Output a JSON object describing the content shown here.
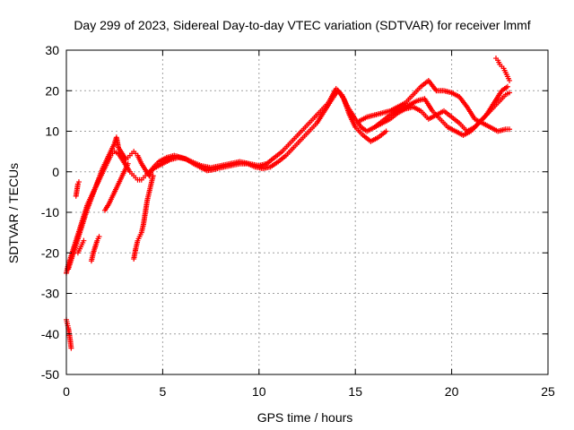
{
  "chart_data": {
    "type": "scatter",
    "title": "Day 299 of 2023, Sidereal Day-to-day VTEC variation (SDTVAR) for receiver lmmf",
    "xlabel": "GPS time / hours",
    "ylabel": "SDTVAR / TECUs",
    "xlim": [
      0,
      25
    ],
    "ylim": [
      -50,
      30
    ],
    "xticks": [
      0,
      5,
      10,
      15,
      20,
      25
    ],
    "yticks": [
      -50,
      -40,
      -30,
      -20,
      -10,
      0,
      10,
      20,
      30
    ],
    "xtick_labels": [
      "0",
      "5",
      "10",
      "15",
      "20",
      "25"
    ],
    "ytick_labels": [
      "-50",
      "-40",
      "-30",
      "-20",
      "-10",
      "0",
      "10",
      "20",
      "30"
    ],
    "grid": true,
    "marker": "+",
    "color": "#ff0000",
    "series": [
      {
        "name": "early-initial-negative",
        "points": [
          [
            0.0,
            -36.5
          ],
          [
            0.05,
            -37.5
          ],
          [
            0.1,
            -38.5
          ],
          [
            0.15,
            -40
          ],
          [
            0.2,
            -41.5
          ],
          [
            0.25,
            -43.5
          ]
        ]
      },
      {
        "name": "rise-main",
        "points": [
          [
            0.0,
            -25
          ],
          [
            0.1,
            -23
          ],
          [
            0.3,
            -20
          ],
          [
            0.5,
            -17
          ],
          [
            0.7,
            -14
          ],
          [
            0.9,
            -11
          ],
          [
            1.1,
            -8
          ],
          [
            1.3,
            -6
          ],
          [
            1.5,
            -4
          ],
          [
            1.7,
            -2
          ],
          [
            1.9,
            0
          ],
          [
            2.1,
            2
          ],
          [
            2.3,
            4
          ],
          [
            2.5,
            5
          ],
          [
            2.7,
            4.5
          ],
          [
            2.9,
            3
          ],
          [
            3.1,
            1.5
          ],
          [
            3.3,
            0
          ],
          [
            3.5,
            -1
          ],
          [
            3.7,
            -2
          ],
          [
            3.9,
            -2
          ],
          [
            4.1,
            -1
          ],
          [
            4.3,
            0
          ],
          [
            4.6,
            1
          ],
          [
            5.0,
            2
          ],
          [
            5.4,
            3
          ],
          [
            5.8,
            3.5
          ],
          [
            6.2,
            3.2
          ],
          [
            6.6,
            2
          ],
          [
            7.0,
            1
          ],
          [
            7.3,
            0.3
          ],
          [
            7.6,
            0.5
          ],
          [
            8.0,
            1
          ],
          [
            8.5,
            1.5
          ],
          [
            9.0,
            2
          ],
          [
            9.4,
            2
          ],
          [
            9.8,
            1.2
          ],
          [
            10.2,
            0.8
          ],
          [
            10.6,
            1.2
          ],
          [
            11.0,
            2.5
          ],
          [
            11.4,
            4
          ],
          [
            11.8,
            6
          ],
          [
            12.2,
            8
          ],
          [
            12.6,
            10
          ],
          [
            13.0,
            12
          ],
          [
            13.4,
            15
          ],
          [
            13.8,
            18
          ],
          [
            14.1,
            20
          ],
          [
            14.4,
            18
          ],
          [
            14.7,
            14
          ],
          [
            15.0,
            11
          ],
          [
            15.4,
            9
          ],
          [
            15.8,
            7.5
          ],
          [
            16.2,
            8.5
          ],
          [
            16.6,
            10
          ]
        ]
      },
      {
        "name": "rise-upper",
        "points": [
          [
            0.1,
            -24
          ],
          [
            0.3,
            -21
          ],
          [
            0.5,
            -18
          ],
          [
            0.7,
            -15
          ],
          [
            0.9,
            -12
          ],
          [
            1.1,
            -9
          ],
          [
            1.3,
            -6.5
          ],
          [
            1.5,
            -4
          ],
          [
            1.7,
            -1.5
          ],
          [
            1.9,
            1
          ],
          [
            2.1,
            3
          ],
          [
            2.3,
            5
          ],
          [
            2.5,
            7
          ],
          [
            2.6,
            8.5
          ],
          [
            2.7,
            6
          ],
          [
            2.9,
            4.5
          ],
          [
            3.1,
            3
          ],
          [
            3.3,
            4
          ],
          [
            3.5,
            5
          ],
          [
            3.7,
            4
          ],
          [
            3.9,
            2
          ],
          [
            4.1,
            0.5
          ],
          [
            4.3,
            -1
          ],
          [
            4.5,
            1
          ],
          [
            4.8,
            2.5
          ],
          [
            5.2,
            3.5
          ],
          [
            5.6,
            4
          ],
          [
            6.0,
            3.5
          ],
          [
            6.5,
            2.5
          ],
          [
            7.0,
            1.5
          ],
          [
            7.5,
            1
          ],
          [
            8.0,
            1.5
          ],
          [
            8.5,
            2
          ],
          [
            9.0,
            2.5
          ],
          [
            9.5,
            2
          ],
          [
            10.0,
            1.5
          ],
          [
            10.4,
            2
          ],
          [
            10.8,
            3.5
          ],
          [
            11.2,
            5
          ],
          [
            11.6,
            7
          ],
          [
            12.0,
            9
          ],
          [
            12.4,
            11
          ],
          [
            12.8,
            13
          ],
          [
            13.2,
            15
          ],
          [
            13.6,
            17
          ],
          [
            14.0,
            20.5
          ],
          [
            14.3,
            19
          ],
          [
            14.6,
            16
          ],
          [
            15.0,
            13
          ],
          [
            15.3,
            11
          ],
          [
            15.6,
            10
          ],
          [
            16.0,
            11
          ],
          [
            16.4,
            12.5
          ],
          [
            16.8,
            14
          ],
          [
            17.2,
            15.5
          ]
        ]
      },
      {
        "name": "scattered-segment-a",
        "points": [
          [
            0.5,
            -6
          ],
          [
            0.55,
            -4.5
          ],
          [
            0.6,
            -3
          ],
          [
            0.65,
            -2.5
          ]
        ]
      },
      {
        "name": "scattered-segment-b",
        "points": [
          [
            1.3,
            -22
          ],
          [
            1.4,
            -20
          ],
          [
            1.5,
            -18.5
          ],
          [
            1.6,
            -17
          ],
          [
            1.7,
            -16
          ]
        ]
      },
      {
        "name": "scattered-segment-c",
        "points": [
          [
            0.6,
            -20
          ],
          [
            0.7,
            -19
          ],
          [
            0.8,
            -18
          ],
          [
            0.9,
            -17
          ]
        ]
      },
      {
        "name": "dip-segment",
        "points": [
          [
            2.0,
            -9.5
          ],
          [
            2.2,
            -8
          ],
          [
            2.4,
            -6
          ],
          [
            2.6,
            -4
          ],
          [
            2.8,
            -2
          ],
          [
            3.0,
            0
          ],
          [
            3.2,
            2
          ]
        ]
      },
      {
        "name": "drop-segment",
        "points": [
          [
            3.5,
            -21.5
          ],
          [
            3.6,
            -19
          ],
          [
            3.7,
            -17
          ],
          [
            3.8,
            -16
          ],
          [
            3.9,
            -15
          ],
          [
            4.0,
            -13
          ],
          [
            4.1,
            -10
          ],
          [
            4.2,
            -7
          ],
          [
            4.3,
            -5
          ],
          [
            4.4,
            -3
          ],
          [
            4.5,
            -1
          ]
        ]
      },
      {
        "name": "late-branch-1",
        "points": [
          [
            15.2,
            12.5
          ],
          [
            15.6,
            13.5
          ],
          [
            16.0,
            14
          ],
          [
            16.4,
            14.5
          ],
          [
            16.8,
            15
          ],
          [
            17.2,
            16
          ],
          [
            17.6,
            17
          ],
          [
            18.0,
            19
          ],
          [
            18.4,
            21
          ],
          [
            18.8,
            22.5
          ],
          [
            19.2,
            20
          ],
          [
            19.6,
            20
          ],
          [
            20.0,
            19.5
          ],
          [
            20.4,
            18.5
          ],
          [
            20.8,
            16
          ],
          [
            21.2,
            13
          ],
          [
            21.6,
            12
          ],
          [
            22.0,
            11
          ],
          [
            22.4,
            10
          ],
          [
            22.8,
            10.5
          ],
          [
            23.0,
            10.5
          ]
        ]
      },
      {
        "name": "late-branch-2",
        "points": [
          [
            16.0,
            11
          ],
          [
            16.4,
            12
          ],
          [
            16.8,
            13
          ],
          [
            17.2,
            14.5
          ],
          [
            17.6,
            15.5
          ],
          [
            18.0,
            16
          ],
          [
            18.4,
            15
          ],
          [
            18.8,
            13
          ],
          [
            19.2,
            14
          ],
          [
            19.6,
            15
          ],
          [
            20.0,
            13.5
          ],
          [
            20.4,
            12
          ],
          [
            20.8,
            10
          ],
          [
            21.2,
            11
          ],
          [
            21.6,
            13
          ],
          [
            22.0,
            15
          ],
          [
            22.4,
            17
          ],
          [
            22.8,
            19
          ],
          [
            23.0,
            19.5
          ]
        ]
      },
      {
        "name": "late-branch-3",
        "points": [
          [
            17.0,
            14.5
          ],
          [
            17.4,
            15.5
          ],
          [
            17.8,
            16.5
          ],
          [
            18.2,
            17.5
          ],
          [
            18.6,
            18
          ],
          [
            19.0,
            15
          ],
          [
            19.4,
            13
          ],
          [
            19.8,
            11
          ],
          [
            20.2,
            10
          ],
          [
            20.6,
            9
          ],
          [
            21.0,
            10
          ],
          [
            21.4,
            12
          ],
          [
            21.8,
            14
          ],
          [
            22.2,
            17
          ],
          [
            22.6,
            20
          ],
          [
            22.9,
            21
          ]
        ]
      },
      {
        "name": "late-spike",
        "points": [
          [
            22.3,
            28
          ],
          [
            22.4,
            27.5
          ],
          [
            22.5,
            26.5
          ],
          [
            22.6,
            26
          ],
          [
            22.7,
            25.5
          ],
          [
            22.8,
            24.5
          ],
          [
            22.9,
            23.5
          ],
          [
            23.0,
            22.5
          ]
        ]
      }
    ]
  }
}
